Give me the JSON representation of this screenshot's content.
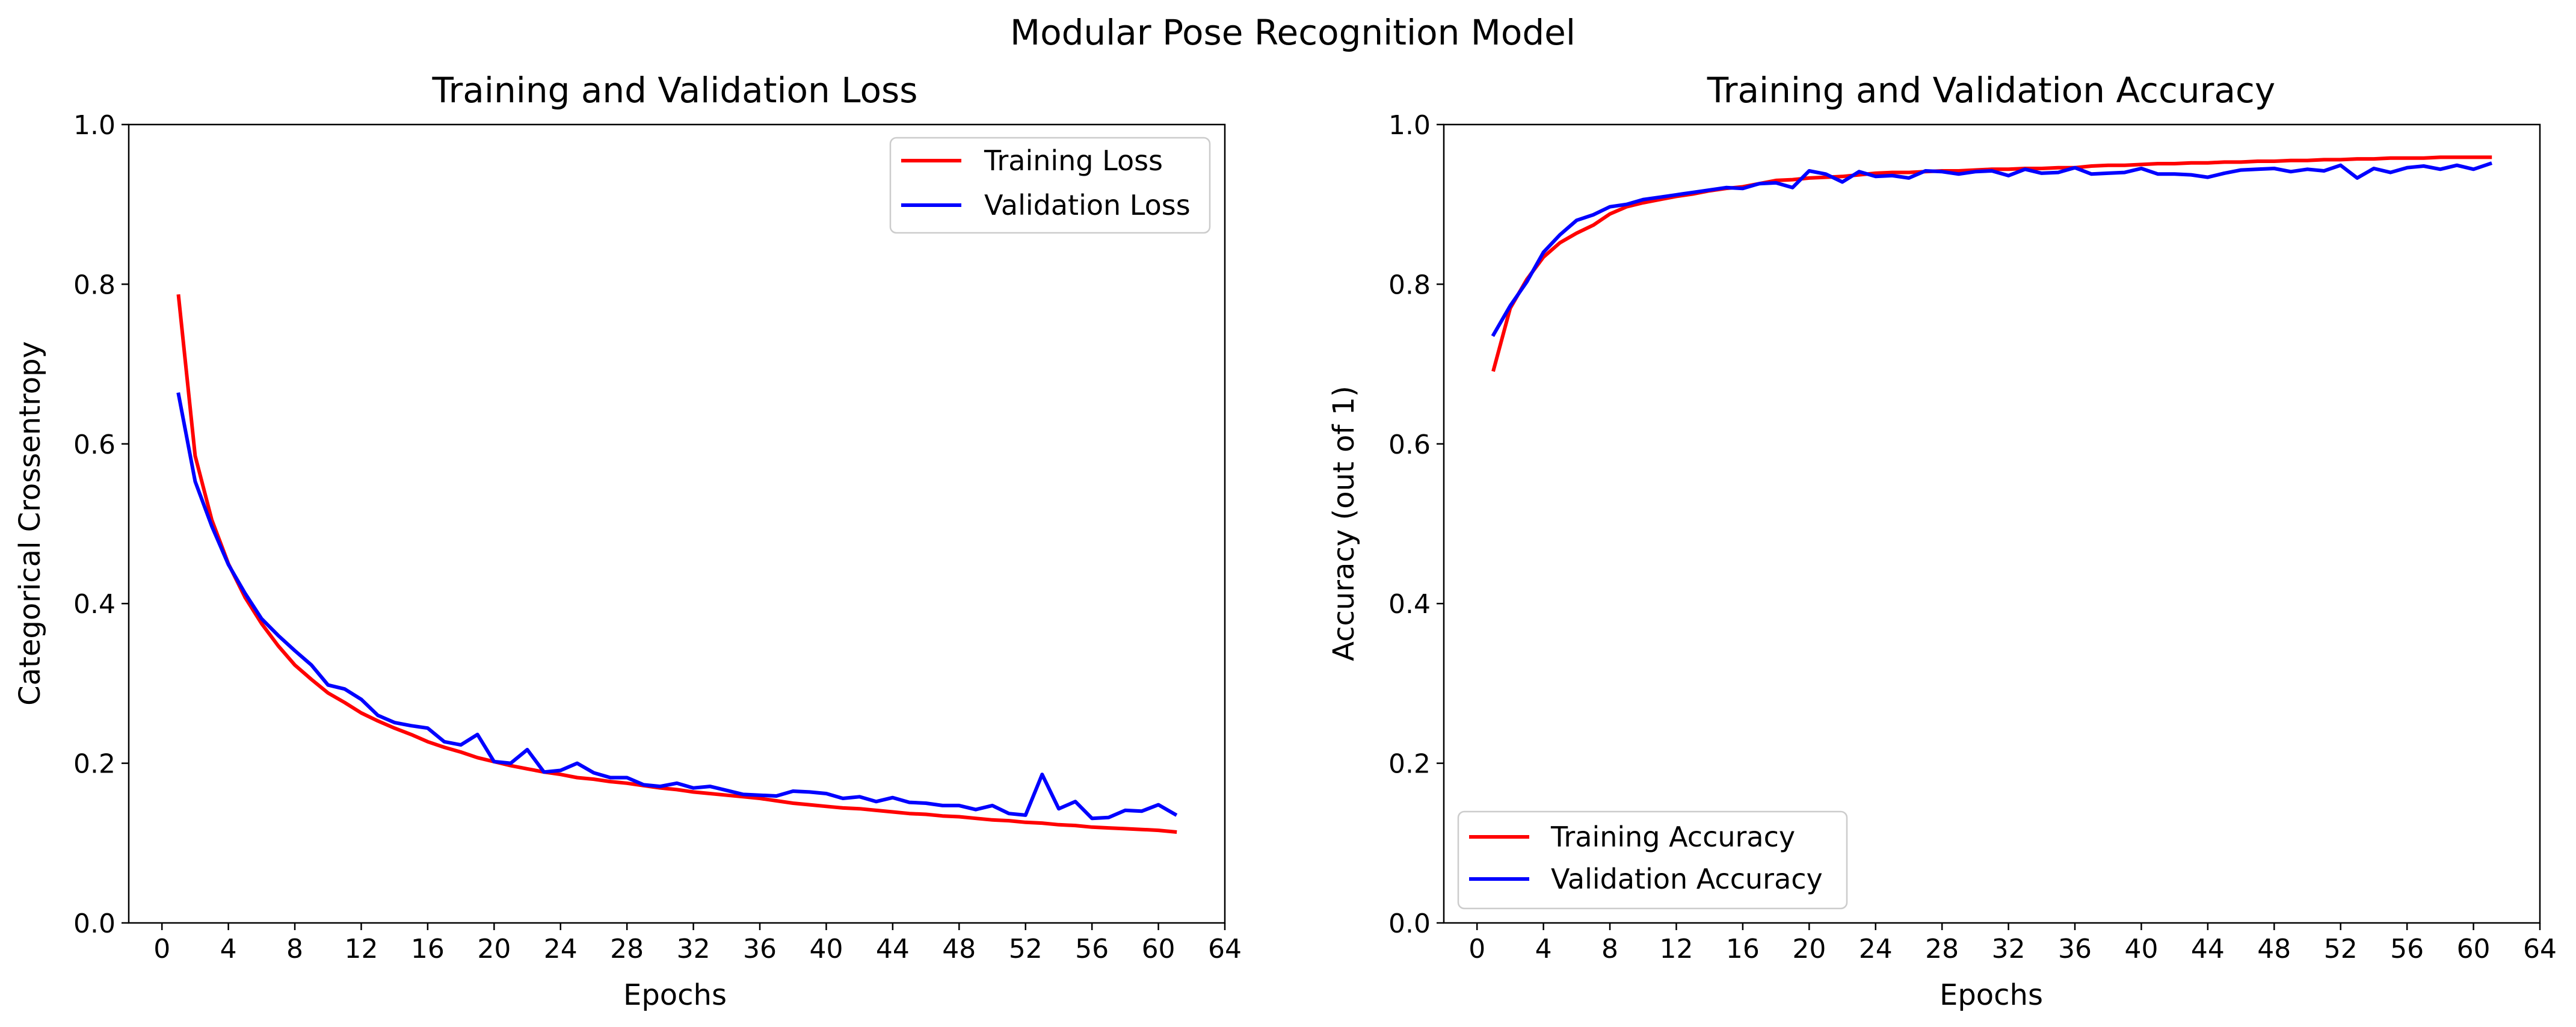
{
  "figure": {
    "title": "Modular Pose Recognition Model"
  },
  "colors": {
    "training": "#ff0000",
    "validation": "#0000ff",
    "axes": "#000000",
    "background": "#ffffff"
  },
  "chart_data": [
    {
      "type": "line",
      "title": "Training and Validation Loss",
      "xlabel": "Epochs",
      "ylabel": "Categorical Crossentropy",
      "xlim": [
        -2,
        64
      ],
      "ylim": [
        0.0,
        1.0
      ],
      "xticks": [
        0,
        4,
        8,
        12,
        16,
        20,
        24,
        28,
        32,
        36,
        40,
        44,
        48,
        52,
        56,
        60,
        64
      ],
      "yticks": [
        0.0,
        0.2,
        0.4,
        0.6,
        0.8,
        1.0
      ],
      "ytick_labels": [
        "0.0",
        "0.2",
        "0.4",
        "0.6",
        "0.8",
        "1.0"
      ],
      "legend_loc": "upper right",
      "grid": false,
      "x": [
        1,
        2,
        3,
        4,
        5,
        6,
        7,
        8,
        9,
        10,
        11,
        12,
        13,
        14,
        15,
        16,
        17,
        18,
        19,
        20,
        21,
        22,
        23,
        24,
        25,
        26,
        27,
        28,
        29,
        30,
        31,
        32,
        33,
        34,
        35,
        36,
        37,
        38,
        39,
        40,
        41,
        42,
        43,
        44,
        45,
        46,
        47,
        48,
        49,
        50,
        51,
        52,
        53,
        54,
        55,
        56,
        57,
        58,
        59,
        60,
        61
      ],
      "series": [
        {
          "name": "Training Loss",
          "color": "#ff0000",
          "values": [
            0.785,
            0.585,
            0.505,
            0.45,
            0.408,
            0.375,
            0.347,
            0.323,
            0.305,
            0.288,
            0.276,
            0.263,
            0.253,
            0.244,
            0.236,
            0.227,
            0.22,
            0.214,
            0.207,
            0.202,
            0.197,
            0.193,
            0.189,
            0.186,
            0.182,
            0.18,
            0.177,
            0.175,
            0.172,
            0.169,
            0.167,
            0.164,
            0.162,
            0.16,
            0.158,
            0.156,
            0.153,
            0.15,
            0.148,
            0.146,
            0.144,
            0.143,
            0.141,
            0.139,
            0.137,
            0.136,
            0.134,
            0.133,
            0.131,
            0.129,
            0.128,
            0.126,
            0.125,
            0.123,
            0.122,
            0.12,
            0.119,
            0.118,
            0.117,
            0.116,
            0.114
          ]
        },
        {
          "name": "Validation Loss",
          "color": "#0000ff",
          "values": [
            0.662,
            0.553,
            0.497,
            0.449,
            0.413,
            0.381,
            0.36,
            0.341,
            0.323,
            0.298,
            0.293,
            0.28,
            0.26,
            0.251,
            0.247,
            0.244,
            0.227,
            0.223,
            0.236,
            0.202,
            0.2,
            0.217,
            0.189,
            0.191,
            0.2,
            0.188,
            0.182,
            0.182,
            0.173,
            0.171,
            0.175,
            0.169,
            0.171,
            0.166,
            0.161,
            0.16,
            0.159,
            0.165,
            0.164,
            0.162,
            0.156,
            0.158,
            0.152,
            0.157,
            0.151,
            0.15,
            0.147,
            0.147,
            0.142,
            0.147,
            0.137,
            0.135,
            0.186,
            0.143,
            0.152,
            0.131,
            0.132,
            0.141,
            0.14,
            0.148,
            0.136
          ]
        }
      ]
    },
    {
      "type": "line",
      "title": "Training and Validation Accuracy",
      "xlabel": "Epochs",
      "ylabel": "Accuracy (out of 1)",
      "xlim": [
        -2,
        64
      ],
      "ylim": [
        0.0,
        1.0
      ],
      "xticks": [
        0,
        4,
        8,
        12,
        16,
        20,
        24,
        28,
        32,
        36,
        40,
        44,
        48,
        52,
        56,
        60,
        64
      ],
      "yticks": [
        0.0,
        0.2,
        0.4,
        0.6,
        0.8,
        1.0
      ],
      "ytick_labels": [
        "0.0",
        "0.2",
        "0.4",
        "0.6",
        "0.8",
        "1.0"
      ],
      "legend_loc": "lower left",
      "grid": false,
      "x": [
        1,
        2,
        3,
        4,
        5,
        6,
        7,
        8,
        9,
        10,
        11,
        12,
        13,
        14,
        15,
        16,
        17,
        18,
        19,
        20,
        21,
        22,
        23,
        24,
        25,
        26,
        27,
        28,
        29,
        30,
        31,
        32,
        33,
        34,
        35,
        36,
        37,
        38,
        39,
        40,
        41,
        42,
        43,
        44,
        45,
        46,
        47,
        48,
        49,
        50,
        51,
        52,
        53,
        54,
        55,
        56,
        57,
        58,
        59,
        60,
        61
      ],
      "series": [
        {
          "name": "Training Accuracy",
          "color": "#ff0000",
          "values": [
            0.693,
            0.77,
            0.806,
            0.834,
            0.852,
            0.864,
            0.874,
            0.888,
            0.897,
            0.902,
            0.906,
            0.91,
            0.913,
            0.917,
            0.92,
            0.922,
            0.926,
            0.93,
            0.931,
            0.933,
            0.934,
            0.935,
            0.937,
            0.939,
            0.94,
            0.94,
            0.941,
            0.942,
            0.942,
            0.943,
            0.944,
            0.944,
            0.945,
            0.945,
            0.946,
            0.946,
            0.948,
            0.949,
            0.949,
            0.95,
            0.951,
            0.951,
            0.952,
            0.952,
            0.953,
            0.953,
            0.954,
            0.954,
            0.955,
            0.955,
            0.956,
            0.956,
            0.957,
            0.957,
            0.958,
            0.958,
            0.958,
            0.959,
            0.959,
            0.959,
            0.959
          ]
        },
        {
          "name": "Validation Accuracy",
          "color": "#0000ff",
          "values": [
            0.737,
            0.773,
            0.803,
            0.84,
            0.862,
            0.88,
            0.887,
            0.897,
            0.9,
            0.906,
            0.909,
            0.912,
            0.915,
            0.918,
            0.921,
            0.92,
            0.926,
            0.927,
            0.921,
            0.942,
            0.938,
            0.928,
            0.941,
            0.935,
            0.936,
            0.933,
            0.942,
            0.941,
            0.938,
            0.941,
            0.942,
            0.936,
            0.944,
            0.939,
            0.94,
            0.946,
            0.938,
            0.939,
            0.94,
            0.945,
            0.938,
            0.938,
            0.937,
            0.934,
            0.939,
            0.943,
            0.944,
            0.945,
            0.941,
            0.944,
            0.942,
            0.949,
            0.933,
            0.945,
            0.94,
            0.946,
            0.948,
            0.944,
            0.949,
            0.944,
            0.951
          ]
        }
      ]
    }
  ]
}
